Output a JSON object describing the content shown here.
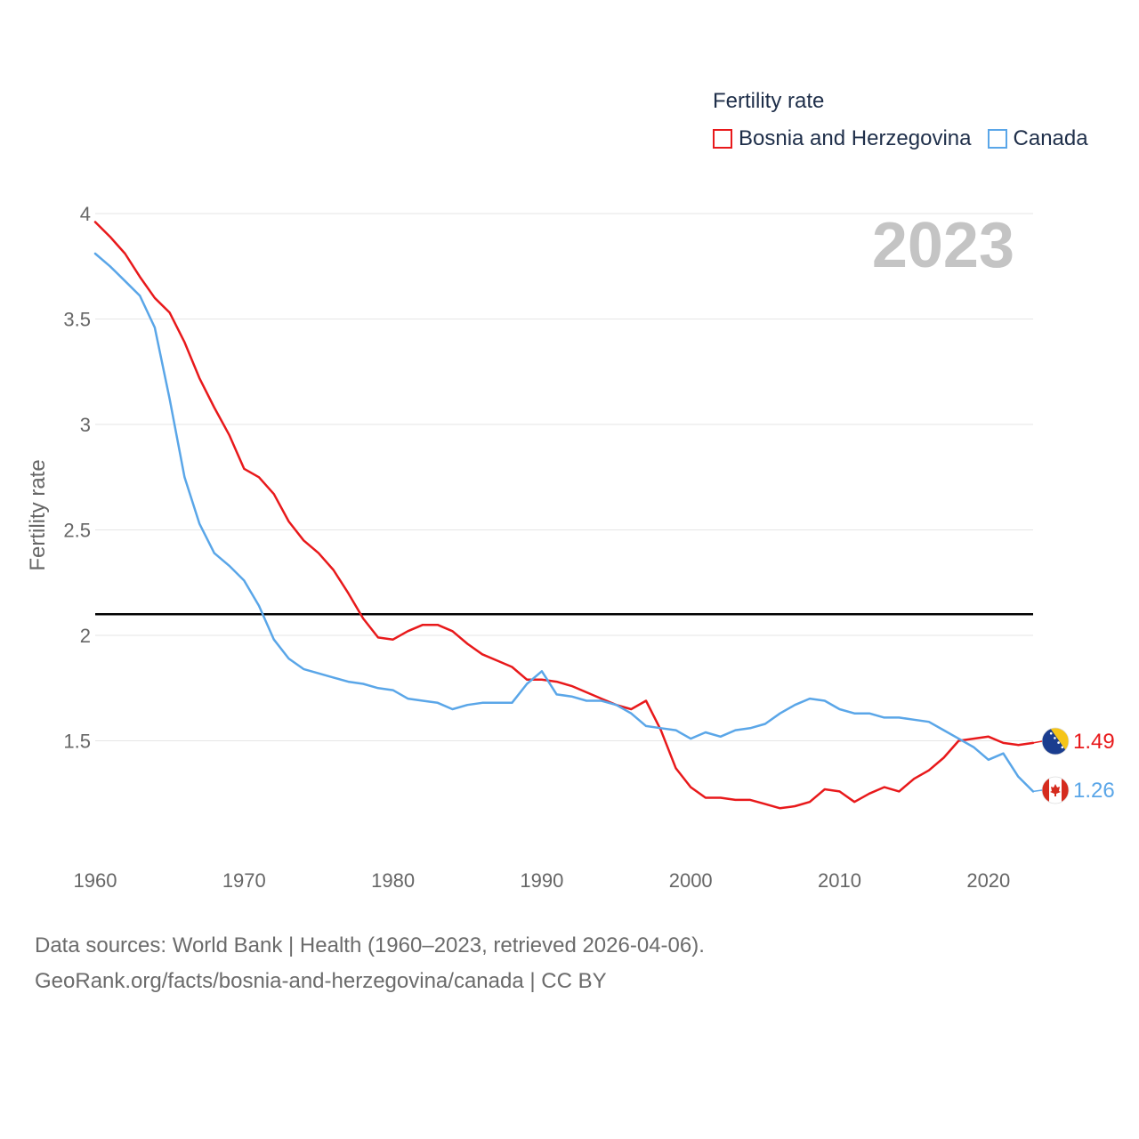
{
  "chart_data": {
    "type": "line",
    "legend_title": "Fertility rate",
    "ylabel": "Fertility rate",
    "xlabel": "",
    "ylim": [
      1,
      4
    ],
    "xlim": [
      1960,
      2023
    ],
    "yticks": [
      "4",
      "3.5",
      "3",
      "2.5",
      "2",
      "1.5"
    ],
    "ytick_values": [
      4,
      3.5,
      3,
      2.5,
      2,
      1.5
    ],
    "xticks": [
      "1960",
      "1970",
      "1980",
      "1990",
      "2000",
      "2010",
      "2020"
    ],
    "xtick_values": [
      1960,
      1970,
      1980,
      1990,
      2000,
      2010,
      2020
    ],
    "current_year": "2023",
    "reference_line": 2.1,
    "grid": true,
    "legend_position": "top-right",
    "x": [
      1960,
      1961,
      1962,
      1963,
      1964,
      1965,
      1966,
      1967,
      1968,
      1969,
      1970,
      1971,
      1972,
      1973,
      1974,
      1975,
      1976,
      1977,
      1978,
      1979,
      1980,
      1981,
      1982,
      1983,
      1984,
      1985,
      1986,
      1987,
      1988,
      1989,
      1990,
      1991,
      1992,
      1993,
      1994,
      1995,
      1996,
      1997,
      1998,
      1999,
      2000,
      2001,
      2002,
      2003,
      2004,
      2005,
      2006,
      2007,
      2008,
      2009,
      2010,
      2011,
      2012,
      2013,
      2014,
      2015,
      2016,
      2017,
      2018,
      2019,
      2020,
      2021,
      2022,
      2023
    ],
    "series": [
      {
        "name": "Bosnia and Herzegovina",
        "color": "#e8191b",
        "end_label": "1.49",
        "flag": "bosnia-flag",
        "values": [
          3.96,
          3.89,
          3.81,
          3.7,
          3.6,
          3.53,
          3.39,
          3.22,
          3.08,
          2.95,
          2.79,
          2.75,
          2.67,
          2.54,
          2.45,
          2.39,
          2.31,
          2.2,
          2.08,
          1.99,
          1.98,
          2.02,
          2.05,
          2.05,
          2.02,
          1.96,
          1.91,
          1.88,
          1.85,
          1.79,
          1.79,
          1.78,
          1.76,
          1.73,
          1.7,
          1.67,
          1.65,
          1.69,
          1.55,
          1.37,
          1.28,
          1.23,
          1.23,
          1.22,
          1.22,
          1.2,
          1.18,
          1.19,
          1.21,
          1.27,
          1.26,
          1.21,
          1.25,
          1.28,
          1.26,
          1.32,
          1.36,
          1.42,
          1.5,
          1.51,
          1.52,
          1.49,
          1.48,
          1.49
        ]
      },
      {
        "name": "Canada",
        "color": "#5aa6e8",
        "end_label": "1.26",
        "flag": "canada-flag",
        "values": [
          3.81,
          3.75,
          3.68,
          3.61,
          3.46,
          3.12,
          2.75,
          2.53,
          2.39,
          2.33,
          2.26,
          2.14,
          1.98,
          1.89,
          1.84,
          1.82,
          1.8,
          1.78,
          1.77,
          1.75,
          1.74,
          1.7,
          1.69,
          1.68,
          1.65,
          1.67,
          1.68,
          1.68,
          1.68,
          1.77,
          1.83,
          1.72,
          1.71,
          1.69,
          1.69,
          1.67,
          1.63,
          1.57,
          1.56,
          1.55,
          1.51,
          1.54,
          1.52,
          1.55,
          1.56,
          1.58,
          1.63,
          1.67,
          1.7,
          1.69,
          1.65,
          1.63,
          1.63,
          1.61,
          1.61,
          1.6,
          1.59,
          1.55,
          1.51,
          1.47,
          1.41,
          1.44,
          1.33,
          1.26
        ]
      }
    ]
  },
  "footer": {
    "line1": "Data sources: World Bank | Health (1960–2023, retrieved 2026-04-06).",
    "line2": "GeoRank.org/facts/bosnia-and-herzegovina/canada | CC BY"
  }
}
